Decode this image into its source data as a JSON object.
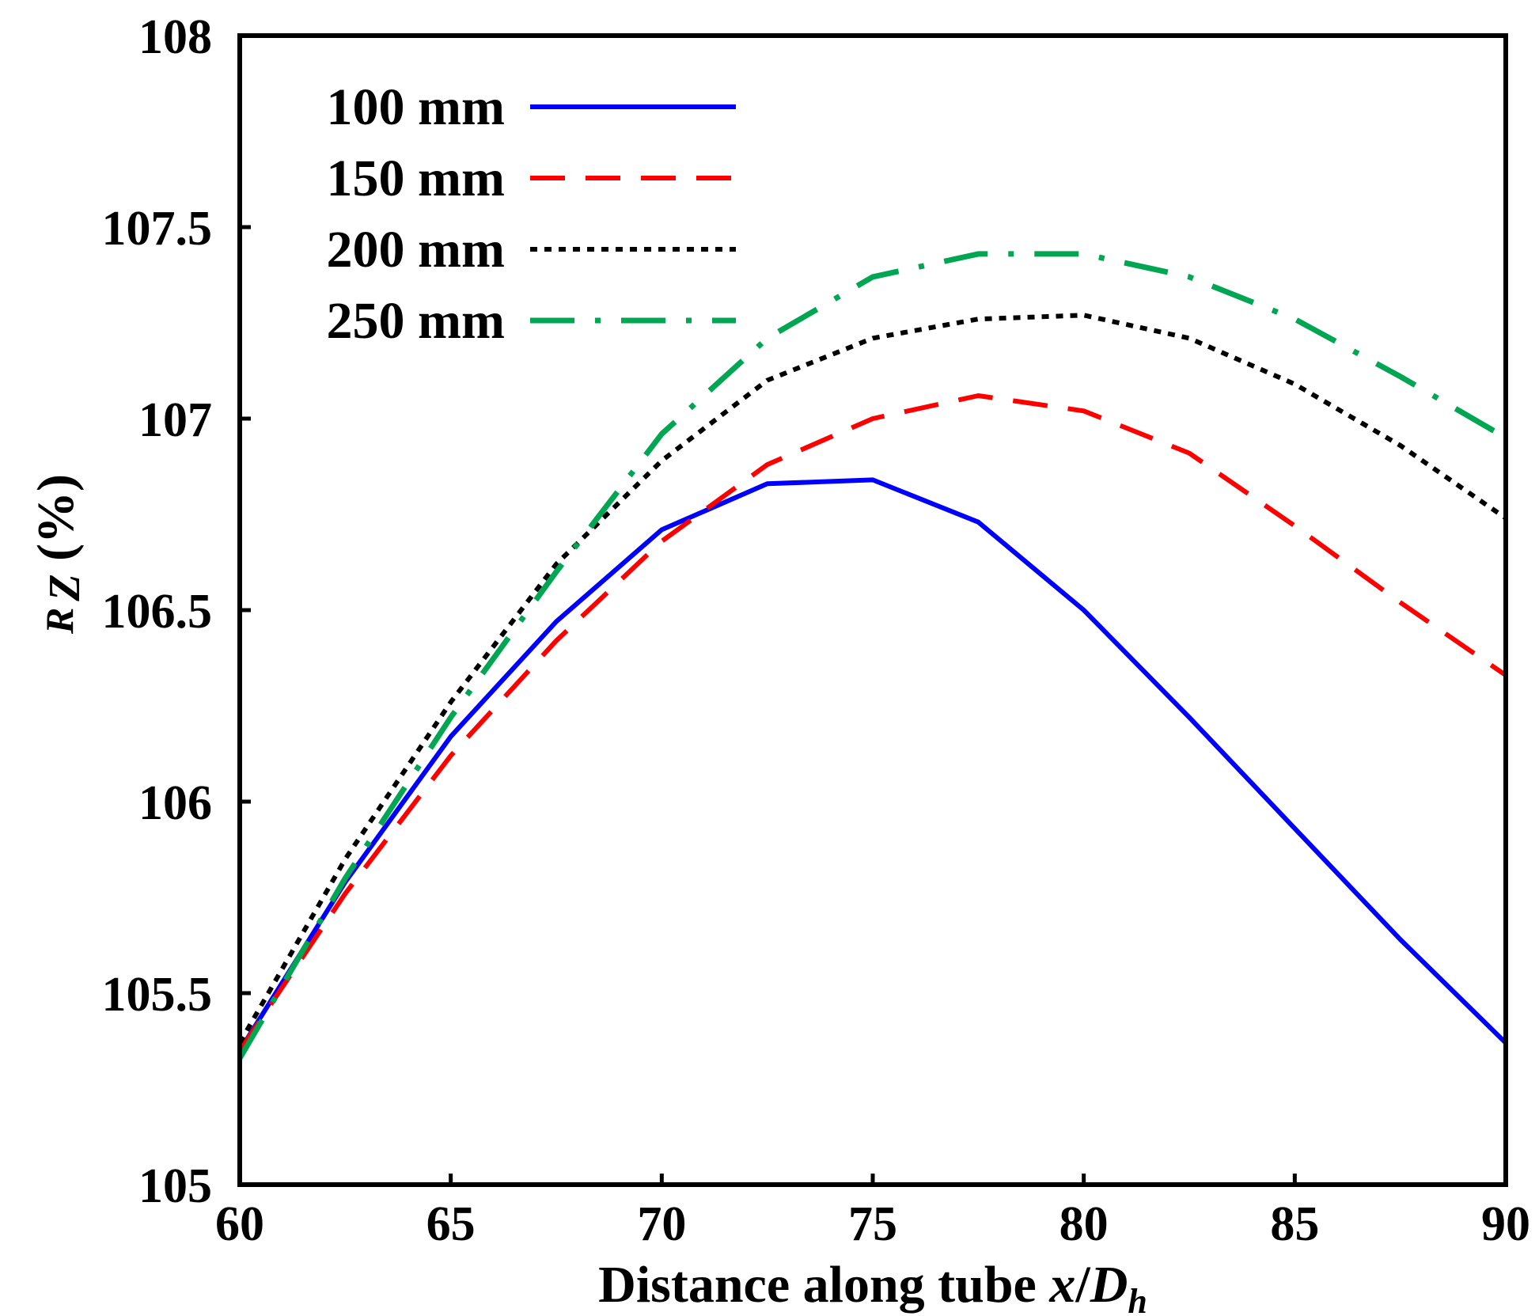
{
  "chart_data": {
    "type": "line",
    "title": "",
    "xlabel": {
      "main": "Distance along tube ",
      "var": "x",
      "slash": "/",
      "D": "D",
      "sub": "h"
    },
    "ylabel": {
      "R": "R",
      "Z": "Z",
      "unit": " (%)"
    },
    "xlim": [
      60,
      90
    ],
    "ylim": [
      105,
      108
    ],
    "x_ticks": [
      60,
      65,
      70,
      75,
      80,
      85,
      90
    ],
    "x_tick_labels": [
      "60",
      "65",
      "70",
      "75",
      "80",
      "85",
      "90"
    ],
    "y_ticks": [
      105,
      105.5,
      106,
      106.5,
      107,
      107.5,
      108
    ],
    "y_tick_labels": [
      "105",
      "105.5",
      "106",
      "106.5",
      "107",
      "107.5",
      "108"
    ],
    "grid": false,
    "legend_position": "top-left",
    "series": [
      {
        "name": "100 mm",
        "color": "#0000ff",
        "dash": "solid",
        "x": [
          60,
          62.5,
          65,
          67.5,
          70,
          72.5,
          75,
          77.5,
          80,
          82.5,
          85,
          87.5,
          90
        ],
        "y": [
          105.35,
          105.79,
          106.17,
          106.47,
          106.71,
          106.83,
          106.84,
          106.73,
          106.5,
          106.22,
          105.93,
          105.64,
          105.37
        ]
      },
      {
        "name": "150 mm",
        "color": "#ff0000",
        "dash": "dashed",
        "x": [
          60,
          62.5,
          65,
          67.5,
          70,
          72.5,
          75,
          77.5,
          80,
          82.5,
          85,
          87.5,
          90
        ],
        "y": [
          105.35,
          105.76,
          106.12,
          106.42,
          106.68,
          106.88,
          107.0,
          107.06,
          107.02,
          106.91,
          106.72,
          106.52,
          106.33
        ]
      },
      {
        "name": "200 mm",
        "color": "#000000",
        "dash": "dotted",
        "x": [
          60,
          62.5,
          65,
          67.5,
          70,
          72.5,
          75,
          77.5,
          80,
          82.5,
          85,
          87.5,
          90
        ],
        "y": [
          105.37,
          105.85,
          106.26,
          106.62,
          106.89,
          107.1,
          107.21,
          107.26,
          107.27,
          107.21,
          107.09,
          106.93,
          106.74
        ]
      },
      {
        "name": "250 mm",
        "color": "#00a651",
        "dash": "dashdot",
        "x": [
          60,
          62.5,
          65,
          67.5,
          70,
          72.5,
          75,
          77.5,
          80,
          82.5,
          85,
          87.5,
          90
        ],
        "y": [
          105.33,
          105.8,
          106.22,
          106.6,
          106.96,
          107.21,
          107.37,
          107.43,
          107.43,
          107.37,
          107.26,
          107.11,
          106.95
        ]
      }
    ]
  }
}
